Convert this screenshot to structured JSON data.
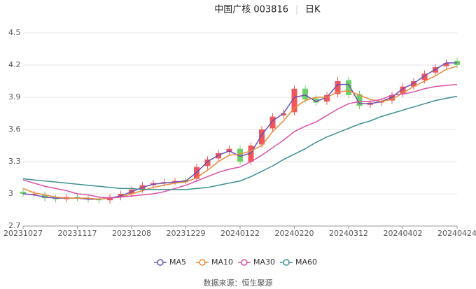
{
  "chart_data": {
    "type": "candlestick",
    "title": "中国广核 003816",
    "period": "日K",
    "source": "数据来源：恒生聚源",
    "categories": [
      "20231027",
      null,
      null,
      null,
      null,
      "20231117",
      null,
      null,
      null,
      null,
      "20231208",
      null,
      null,
      null,
      null,
      "20231229",
      null,
      null,
      null,
      null,
      "20240122",
      null,
      null,
      null,
      null,
      "20240220",
      null,
      null,
      null,
      null,
      "20240312",
      null,
      null,
      null,
      null,
      "20240402",
      null,
      null,
      null,
      null,
      "20240424"
    ],
    "open": [
      3.02,
      3.0,
      2.99,
      2.96,
      2.95,
      2.97,
      2.96,
      2.95,
      2.94,
      2.97,
      3.0,
      3.04,
      3.08,
      3.1,
      3.11,
      3.13,
      3.14,
      3.26,
      3.33,
      3.39,
      3.42,
      3.3,
      3.46,
      3.61,
      3.73,
      3.76,
      3.98,
      3.89,
      3.86,
      3.93,
      4.06,
      3.93,
      3.83,
      3.85,
      3.87,
      3.93,
      4.0,
      4.06,
      4.13,
      4.19,
      4.24
    ],
    "high": [
      3.05,
      3.03,
      3.02,
      2.99,
      3.0,
      3.0,
      2.99,
      2.98,
      3.0,
      3.03,
      3.07,
      3.11,
      3.13,
      3.14,
      3.15,
      3.16,
      3.28,
      3.35,
      3.41,
      3.45,
      3.45,
      3.48,
      3.63,
      3.75,
      3.79,
      4.01,
      4.01,
      3.92,
      3.95,
      4.09,
      4.09,
      3.96,
      3.88,
      3.89,
      3.95,
      4.03,
      4.08,
      4.15,
      4.21,
      4.25,
      4.27
    ],
    "low": [
      2.97,
      2.97,
      2.93,
      2.92,
      2.92,
      2.93,
      2.92,
      2.91,
      2.91,
      2.94,
      2.97,
      3.01,
      3.05,
      3.07,
      3.08,
      3.09,
      3.11,
      3.23,
      3.3,
      3.36,
      3.27,
      3.27,
      3.43,
      3.58,
      3.7,
      3.73,
      3.85,
      3.82,
      3.83,
      3.9,
      3.89,
      3.79,
      3.8,
      3.82,
      3.84,
      3.9,
      3.97,
      4.03,
      4.1,
      4.16,
      4.17
    ],
    "close": [
      3.0,
      3.0,
      2.96,
      2.95,
      2.97,
      2.96,
      2.95,
      2.94,
      2.97,
      3.0,
      3.04,
      3.08,
      3.1,
      3.11,
      3.12,
      3.12,
      3.25,
      3.32,
      3.38,
      3.42,
      3.3,
      3.45,
      3.6,
      3.72,
      3.75,
      3.98,
      3.88,
      3.85,
      3.92,
      4.05,
      3.92,
      3.82,
      3.85,
      3.86,
      3.92,
      4.0,
      4.05,
      4.12,
      4.18,
      4.22,
      4.2
    ],
    "up_color": "#f0575d",
    "down_color": "#6fcf6a",
    "lines": [
      {
        "name": "MA5",
        "color": "#6a4fb0",
        "values": [
          3.0,
          2.99,
          2.97,
          2.96,
          2.96,
          2.96,
          2.95,
          2.95,
          2.96,
          2.98,
          3.02,
          3.06,
          3.09,
          3.1,
          3.11,
          3.12,
          3.2,
          3.3,
          3.36,
          3.4,
          3.35,
          3.38,
          3.55,
          3.68,
          3.75,
          3.9,
          3.92,
          3.86,
          3.9,
          4.02,
          4.02,
          3.84,
          3.84,
          3.86,
          3.9,
          3.98,
          4.03,
          4.1,
          4.16,
          4.22,
          4.22
        ]
      },
      {
        "name": "MA10",
        "color": "#e8893a",
        "values": [
          3.05,
          3.01,
          2.99,
          2.97,
          2.96,
          2.96,
          2.96,
          2.95,
          2.96,
          2.97,
          3.0,
          3.03,
          3.06,
          3.08,
          3.1,
          3.11,
          3.15,
          3.22,
          3.3,
          3.36,
          3.37,
          3.4,
          3.45,
          3.58,
          3.68,
          3.8,
          3.87,
          3.9,
          3.9,
          3.95,
          3.96,
          3.92,
          3.88,
          3.86,
          3.88,
          3.94,
          4.0,
          4.05,
          4.1,
          4.16,
          4.19
        ]
      },
      {
        "name": "MA30",
        "color": "#d94fa8",
        "values": [
          3.13,
          3.1,
          3.07,
          3.05,
          3.03,
          3.0,
          2.99,
          2.97,
          2.96,
          2.97,
          2.98,
          2.99,
          3.0,
          3.02,
          3.05,
          3.08,
          3.12,
          3.16,
          3.2,
          3.23,
          3.25,
          3.3,
          3.36,
          3.43,
          3.5,
          3.58,
          3.63,
          3.67,
          3.73,
          3.79,
          3.84,
          3.86,
          3.86,
          3.88,
          3.92,
          3.93,
          3.95,
          3.98,
          4.0,
          4.01,
          4.02
        ]
      },
      {
        "name": "MA60",
        "color": "#3d8f8f",
        "values": [
          3.14,
          3.13,
          3.12,
          3.11,
          3.1,
          3.09,
          3.08,
          3.07,
          3.06,
          3.05,
          3.05,
          3.04,
          3.04,
          3.04,
          3.04,
          3.04,
          3.05,
          3.06,
          3.08,
          3.1,
          3.12,
          3.16,
          3.21,
          3.26,
          3.32,
          3.37,
          3.42,
          3.48,
          3.53,
          3.57,
          3.61,
          3.65,
          3.68,
          3.72,
          3.75,
          3.78,
          3.81,
          3.84,
          3.87,
          3.89,
          3.91
        ]
      }
    ],
    "ylim": [
      2.7,
      4.5
    ],
    "yticks": [
      2.7,
      3,
      3.3,
      3.6,
      3.9,
      4.2,
      4.5
    ],
    "grid": true
  }
}
